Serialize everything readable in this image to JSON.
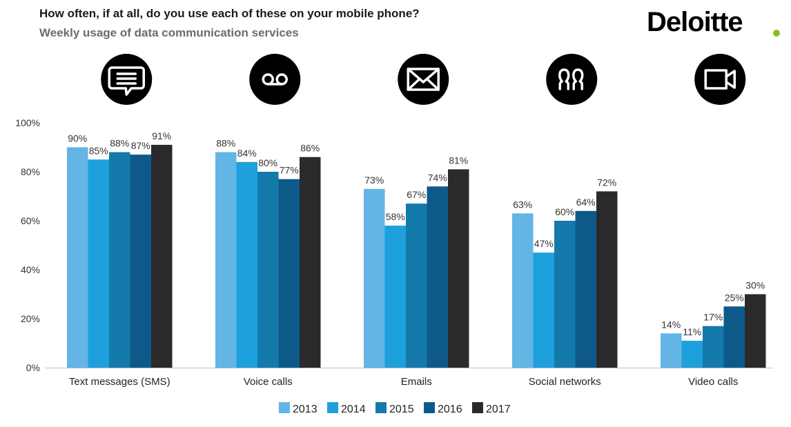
{
  "header": {
    "logo_text": "Deloitte"
  },
  "colors": {
    "logo_dot": "#86bc25",
    "icon_bg": "#000000",
    "icon_fg": "#ffffff"
  },
  "chart_data": {
    "type": "bar",
    "title": "How often, if at all, do you use each of these on your mobile phone?",
    "subtitle": "Weekly usage of data communication services",
    "categories": [
      "Text messages (SMS)",
      "Voice calls",
      "Emails",
      "Social networks",
      "Video calls"
    ],
    "category_icons": [
      "speech-bubble-icon",
      "voicemail-icon",
      "envelope-icon",
      "people-icon",
      "video-camera-icon"
    ],
    "ylim": [
      0,
      100
    ],
    "yticks": [
      "0%",
      "20%",
      "40%",
      "60%",
      "80%",
      "100%"
    ],
    "value_suffix": "%",
    "legend_position": "bottom",
    "series": [
      {
        "name": "2013",
        "color": "#62b5e5",
        "values": [
          90,
          88,
          73,
          63,
          14
        ]
      },
      {
        "name": "2014",
        "color": "#1ea0dc",
        "values": [
          85,
          84,
          58,
          47,
          11
        ]
      },
      {
        "name": "2015",
        "color": "#137aab",
        "values": [
          88,
          80,
          67,
          60,
          17
        ]
      },
      {
        "name": "2016",
        "color": "#0d5a8a",
        "values": [
          87,
          77,
          74,
          64,
          25
        ]
      },
      {
        "name": "2017",
        "color": "#2a2a2c",
        "values": [
          91,
          86,
          81,
          72,
          30
        ]
      }
    ]
  }
}
